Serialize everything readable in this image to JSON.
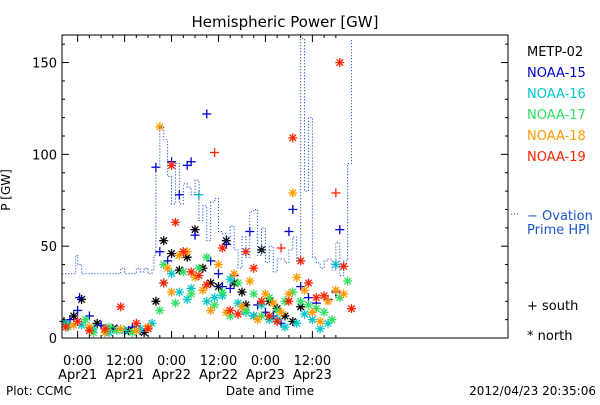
{
  "chart_data": {
    "type": "scatter",
    "title": "Hemispheric Power [GW]",
    "xlabel": "Date and Time",
    "ylabel": "P [GW]",
    "ylim": [
      0,
      165
    ],
    "xlim": [
      -4,
      110
    ],
    "x_unit": "hours from 2012-04-21 00:00",
    "xticks": [
      {
        "x": 0,
        "top": "0:00",
        "bottom": "Apr21"
      },
      {
        "x": 12,
        "top": "12:00",
        "bottom": "Apr21"
      },
      {
        "x": 24,
        "top": "0:00",
        "bottom": "Apr22"
      },
      {
        "x": 36,
        "top": "12:00",
        "bottom": "Apr22"
      },
      {
        "x": 48,
        "top": "0:00",
        "bottom": "Apr23"
      },
      {
        "x": 60,
        "top": "12:00",
        "bottom": "Apr23"
      }
    ],
    "yticks": [
      0,
      50,
      100,
      150
    ],
    "footer_left": "Plot: CCMC",
    "footer_right": "2012/04/23 20:35:06",
    "marker_legend": [
      {
        "marker": "+",
        "label": "south"
      },
      {
        "marker": "*",
        "label": "north"
      }
    ],
    "series": [
      {
        "name": "METP-02",
        "color": "#000000",
        "points": [
          [
            -3.5,
            9,
            "+"
          ],
          [
            -1,
            12,
            "*"
          ],
          [
            1,
            21,
            "*"
          ],
          [
            5,
            8,
            "*"
          ],
          [
            9,
            5,
            "*"
          ],
          [
            13,
            4,
            "*"
          ],
          [
            17,
            3,
            "*"
          ],
          [
            20,
            20,
            "*"
          ],
          [
            22,
            53,
            "*"
          ],
          [
            24,
            46,
            "*"
          ],
          [
            26,
            37,
            "*"
          ],
          [
            28,
            44,
            "*"
          ],
          [
            30,
            59,
            "*"
          ],
          [
            32,
            38,
            "*"
          ],
          [
            34,
            30,
            "*"
          ],
          [
            36,
            28,
            "*"
          ],
          [
            38,
            53,
            "*"
          ],
          [
            40,
            30,
            "*"
          ],
          [
            42,
            25,
            "*"
          ],
          [
            43,
            18,
            "*"
          ],
          [
            45,
            12,
            "*"
          ],
          [
            47,
            48,
            "*"
          ],
          [
            49,
            20,
            "*"
          ],
          [
            51,
            16,
            "*"
          ],
          [
            53,
            12,
            "*"
          ],
          [
            55,
            9,
            "*"
          ],
          [
            57,
            17,
            "*"
          ]
        ]
      },
      {
        "name": "NOAA-15",
        "color": "#0000cc",
        "points": [
          [
            -2,
            10,
            "+"
          ],
          [
            0,
            15,
            "+"
          ],
          [
            0.5,
            22,
            "+"
          ],
          [
            3,
            12,
            "+"
          ],
          [
            6,
            7,
            "+"
          ],
          [
            10,
            5,
            "+"
          ],
          [
            14,
            6,
            "+"
          ],
          [
            16,
            4,
            "+"
          ],
          [
            20,
            93,
            "+"
          ],
          [
            21,
            47,
            "+"
          ],
          [
            23,
            42,
            "+"
          ],
          [
            24,
            96,
            "+"
          ],
          [
            26,
            78,
            "+"
          ],
          [
            28,
            94,
            "+"
          ],
          [
            29,
            96,
            "+"
          ],
          [
            30,
            56,
            "+"
          ],
          [
            33,
            122,
            "+"
          ],
          [
            34,
            42,
            "+"
          ],
          [
            36,
            35,
            "+"
          ],
          [
            37,
            28,
            "+"
          ],
          [
            38,
            51,
            "+"
          ],
          [
            39,
            27,
            "+"
          ],
          [
            40,
            34,
            "+"
          ],
          [
            44,
            58,
            "+"
          ],
          [
            46,
            18,
            "+"
          ],
          [
            48,
            14,
            "+"
          ],
          [
            50,
            12,
            "+"
          ],
          [
            52,
            8,
            "+"
          ],
          [
            54,
            58,
            "+"
          ],
          [
            55,
            70,
            "+"
          ],
          [
            57,
            28,
            "+"
          ],
          [
            59,
            22,
            "+"
          ],
          [
            61,
            19,
            "+"
          ],
          [
            64,
            21,
            "+"
          ],
          [
            66,
            25,
            "+"
          ],
          [
            67,
            59,
            "+"
          ]
        ]
      },
      {
        "name": "NOAA-16",
        "color": "#00c8c8",
        "points": [
          [
            -3,
            8,
            "*"
          ],
          [
            1,
            7,
            "*"
          ],
          [
            4,
            5,
            "*"
          ],
          [
            8,
            3,
            "*"
          ],
          [
            12,
            4,
            "*"
          ],
          [
            16,
            5,
            "*"
          ],
          [
            19,
            8,
            "*"
          ],
          [
            22,
            30,
            "*"
          ],
          [
            24,
            35,
            "*"
          ],
          [
            26,
            25,
            "*"
          ],
          [
            28,
            21,
            "*"
          ],
          [
            29,
            27,
            "*"
          ],
          [
            31,
            78,
            "+"
          ],
          [
            33,
            20,
            "*"
          ],
          [
            35,
            22,
            "*"
          ],
          [
            37,
            23,
            "*"
          ],
          [
            39,
            32,
            "*"
          ],
          [
            41,
            19,
            "*"
          ],
          [
            43,
            14,
            "*"
          ],
          [
            45,
            12,
            "*"
          ],
          [
            47,
            18,
            "*"
          ],
          [
            49,
            10,
            "*"
          ],
          [
            51,
            10,
            "*"
          ],
          [
            53,
            6,
            "*"
          ],
          [
            56,
            8,
            "*"
          ],
          [
            58,
            13,
            "*"
          ],
          [
            60,
            10,
            "*"
          ],
          [
            62,
            5,
            "*"
          ],
          [
            64,
            8,
            "*"
          ],
          [
            66,
            40,
            "*"
          ]
        ]
      },
      {
        "name": "NOAA-17",
        "color": "#30e060",
        "points": [
          [
            -2.5,
            6,
            "*"
          ],
          [
            2,
            10,
            "*"
          ],
          [
            4,
            3,
            "*"
          ],
          [
            8,
            6,
            "*"
          ],
          [
            10,
            4,
            "*"
          ],
          [
            14,
            3,
            "*"
          ],
          [
            18,
            5,
            "*"
          ],
          [
            21,
            15,
            "*"
          ],
          [
            22,
            40,
            "*"
          ],
          [
            25,
            19,
            "*"
          ],
          [
            27,
            36,
            "*"
          ],
          [
            29,
            24,
            "*"
          ],
          [
            31,
            38,
            "*"
          ],
          [
            33,
            44,
            "*"
          ],
          [
            35,
            18,
            "*"
          ],
          [
            37,
            25,
            "*"
          ],
          [
            39,
            12,
            "*"
          ],
          [
            41,
            30,
            "*"
          ],
          [
            43,
            15,
            "*"
          ],
          [
            45,
            24,
            "*"
          ],
          [
            47,
            12,
            "*"
          ],
          [
            49,
            22,
            "*"
          ],
          [
            51,
            15,
            "*"
          ],
          [
            53,
            20,
            "*"
          ],
          [
            55,
            25,
            "*"
          ],
          [
            57,
            20,
            "*"
          ],
          [
            59,
            18,
            "*"
          ],
          [
            61,
            16,
            "*"
          ],
          [
            63,
            14,
            "*"
          ],
          [
            65,
            10,
            "*"
          ],
          [
            67,
            22,
            "*"
          ],
          [
            69,
            31,
            "*"
          ]
        ]
      },
      {
        "name": "NOAA-18",
        "color": "#ff9900",
        "points": [
          [
            -1,
            7,
            "*"
          ],
          [
            3,
            6,
            "*"
          ],
          [
            7,
            3,
            "*"
          ],
          [
            11,
            5,
            "*"
          ],
          [
            15,
            4,
            "*"
          ],
          [
            18,
            6,
            "*"
          ],
          [
            21,
            115,
            "*"
          ],
          [
            23,
            38,
            "*"
          ],
          [
            24,
            25,
            "*"
          ],
          [
            26,
            45,
            "*"
          ],
          [
            28,
            47,
            "*"
          ],
          [
            30,
            33,
            "*"
          ],
          [
            32,
            26,
            "*"
          ],
          [
            34,
            15,
            "*"
          ],
          [
            36,
            40,
            "*"
          ],
          [
            38,
            14,
            "*"
          ],
          [
            40,
            35,
            "*"
          ],
          [
            42,
            17,
            "*"
          ],
          [
            44,
            31,
            "*"
          ],
          [
            46,
            10,
            "*"
          ],
          [
            48,
            24,
            "*"
          ],
          [
            50,
            19,
            "*"
          ],
          [
            52,
            14,
            "*"
          ],
          [
            54,
            24,
            "*"
          ],
          [
            55,
            79,
            "*"
          ],
          [
            56,
            33,
            "*"
          ],
          [
            58,
            26,
            "*"
          ],
          [
            60,
            14,
            "*"
          ],
          [
            62,
            9,
            "*"
          ],
          [
            64,
            20,
            "*"
          ],
          [
            66,
            26,
            "*"
          ],
          [
            68,
            24,
            "*"
          ]
        ]
      },
      {
        "name": "NOAA-19",
        "color": "#ff2200",
        "points": [
          [
            -3,
            6,
            "*"
          ],
          [
            0,
            9,
            "*"
          ],
          [
            3,
            4,
            "*"
          ],
          [
            7,
            5,
            "*"
          ],
          [
            11,
            17,
            "*"
          ],
          [
            15,
            8,
            "*"
          ],
          [
            18,
            5,
            "*"
          ],
          [
            22,
            30,
            "*"
          ],
          [
            24,
            94,
            "*"
          ],
          [
            25,
            63,
            "*"
          ],
          [
            27,
            47,
            "*"
          ],
          [
            29,
            36,
            "*"
          ],
          [
            31,
            34,
            "*"
          ],
          [
            33,
            29,
            "*"
          ],
          [
            35,
            101,
            "+"
          ],
          [
            37,
            49,
            "*"
          ],
          [
            39,
            15,
            "*"
          ],
          [
            41,
            13,
            "*"
          ],
          [
            43,
            47,
            "*"
          ],
          [
            45,
            38,
            "*"
          ],
          [
            47,
            20,
            "*"
          ],
          [
            49,
            12,
            "*"
          ],
          [
            51,
            9,
            "*"
          ],
          [
            52,
            49,
            "+"
          ],
          [
            54,
            20,
            "*"
          ],
          [
            55,
            109,
            "*"
          ],
          [
            57,
            42,
            "*"
          ],
          [
            59,
            30,
            "*"
          ],
          [
            61,
            22,
            "*"
          ],
          [
            63,
            23,
            "*"
          ],
          [
            66,
            79,
            "+"
          ],
          [
            67,
            150,
            "*"
          ],
          [
            68,
            39,
            "*"
          ],
          [
            70,
            16,
            "*"
          ]
        ]
      }
    ],
    "ovation": {
      "name": "− Ovation\nPrime HPI",
      "label_line1": "− Ovation",
      "label_line2": "Prime HPI",
      "color": "#1a55cc",
      "x": [
        -4,
        -1,
        -0.5,
        0,
        1,
        2,
        3,
        10,
        11,
        12,
        15,
        16,
        17,
        18,
        19,
        19.5,
        20,
        21,
        22,
        23,
        24,
        25,
        26,
        27,
        28,
        29,
        30,
        31,
        32,
        33,
        34,
        35,
        36,
        37,
        38,
        39,
        40,
        41,
        42,
        43,
        44,
        45,
        46,
        47,
        48,
        49,
        50,
        51,
        52,
        53,
        54,
        55,
        56,
        57,
        58,
        59,
        60,
        61,
        62,
        63,
        64,
        65,
        66,
        67,
        68,
        69,
        70
      ],
      "y": [
        35,
        35,
        45,
        40,
        35,
        35,
        35,
        35,
        38,
        35,
        38,
        36,
        38,
        35,
        37,
        45,
        93,
        115,
        108,
        88,
        73,
        95,
        73,
        84,
        82,
        78,
        86,
        64,
        72,
        53,
        74,
        76,
        58,
        57,
        55,
        61,
        48,
        38,
        55,
        44,
        69,
        70,
        45,
        60,
        41,
        50,
        36,
        43,
        43,
        41,
        48,
        55,
        42,
        163,
        80,
        120,
        44,
        41,
        38,
        42,
        43,
        37,
        52,
        34,
        42,
        95,
        163
      ]
    }
  }
}
